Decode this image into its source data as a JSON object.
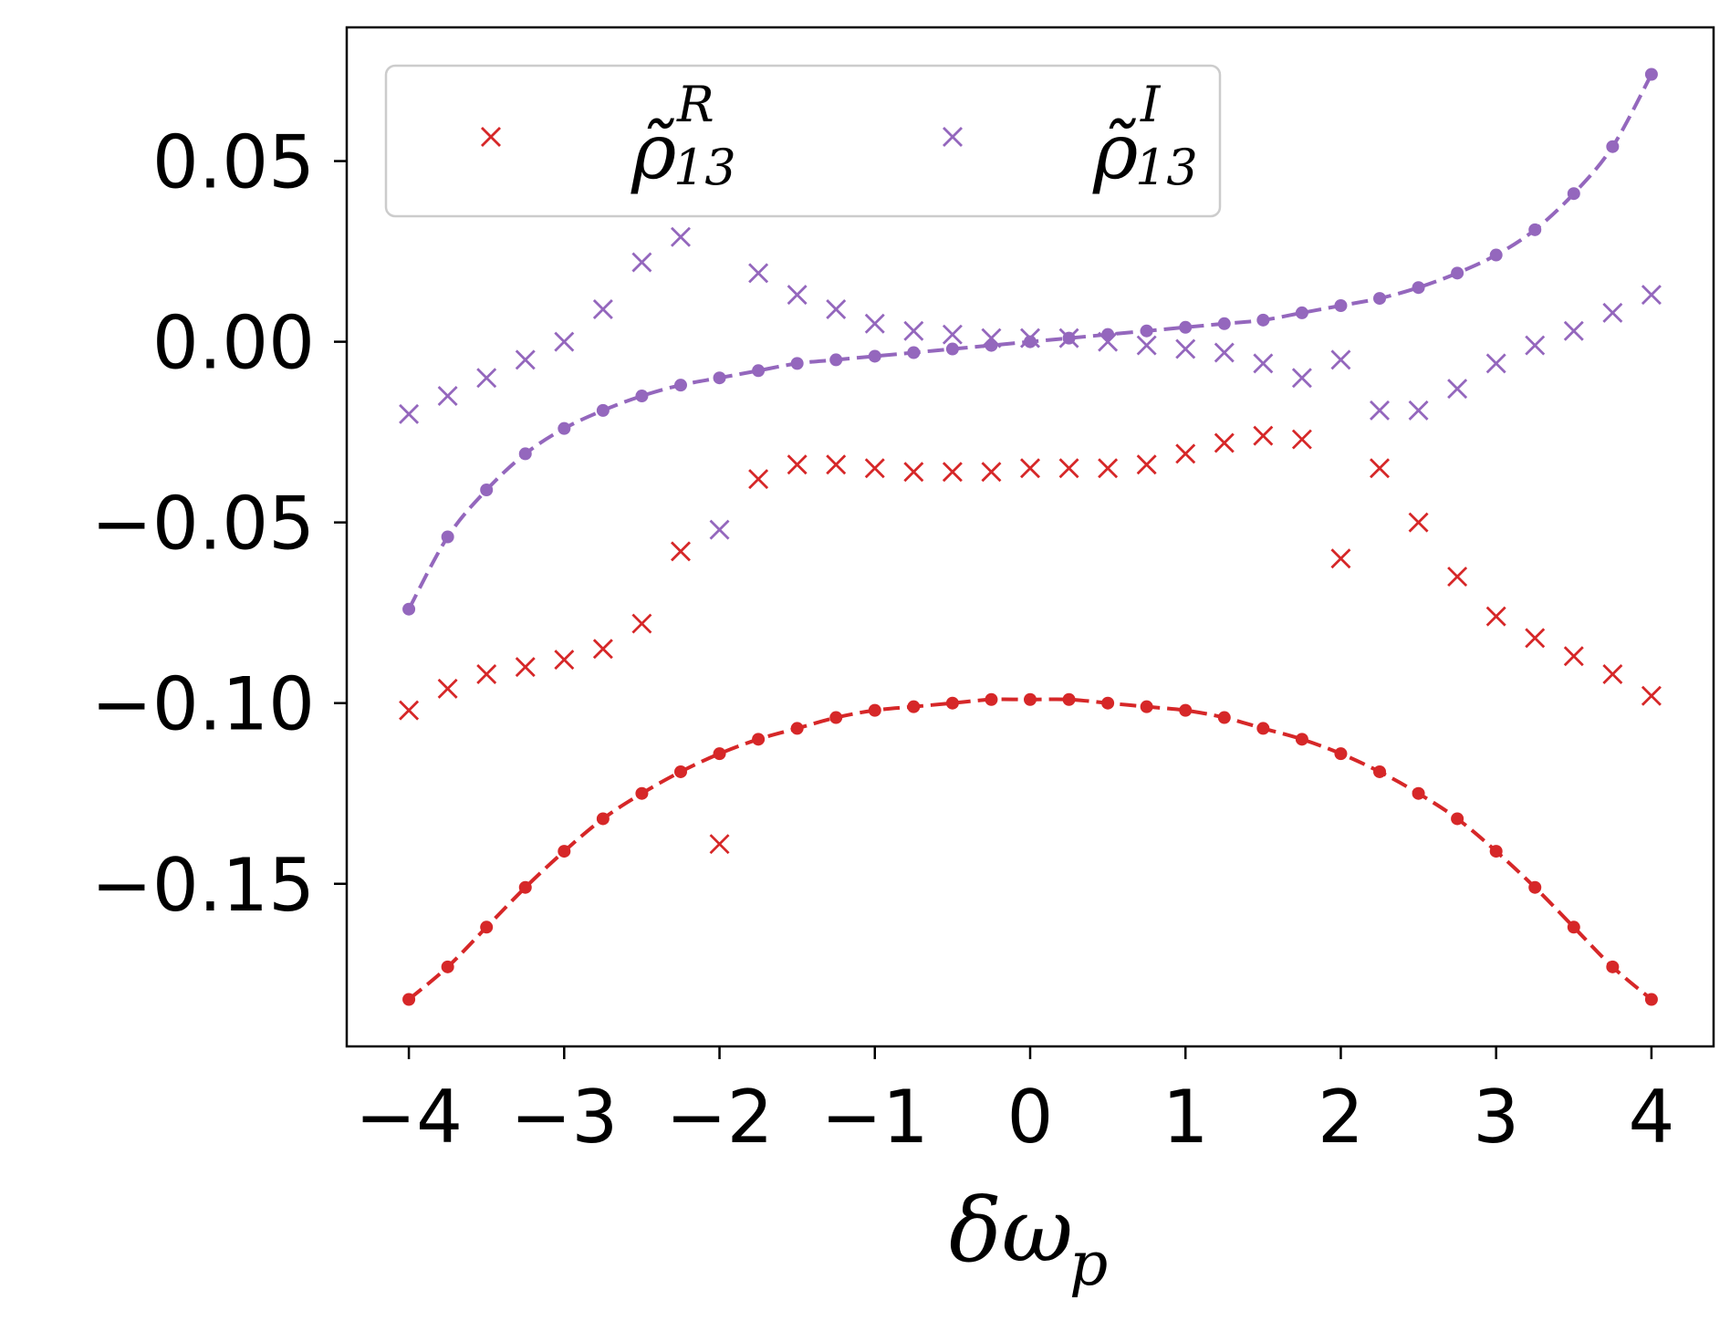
{
  "chart_data": {
    "type": "scatter",
    "title": "",
    "xlabel": "δω",
    "xlabel_subscript": "p",
    "ylabel": "",
    "xlim": [
      -4.4,
      4.4
    ],
    "ylim": [
      -0.195,
      0.087
    ],
    "x_ticks": [
      -4,
      -3,
      -2,
      -1,
      0,
      1,
      2,
      3,
      4
    ],
    "x_tick_labels": [
      "−4",
      "−3",
      "−2",
      "−1",
      "0",
      "1",
      "2",
      "3",
      "4"
    ],
    "y_ticks": [
      0.05,
      0.0,
      -0.05,
      -0.1,
      -0.15
    ],
    "y_tick_labels": [
      "0.05",
      "0.00",
      "−0.05",
      "−0.10",
      "−0.15"
    ],
    "grid": false,
    "legend": {
      "placement": "top-left",
      "columns": 2,
      "entries": [
        {
          "label_base": "ρ̃",
          "label_sub": "13",
          "label_sup": "R",
          "color": "#d62728",
          "marker": "x"
        },
        {
          "label_base": "ρ̃",
          "label_sub": "13",
          "label_sup": "I",
          "color": "#9467bd",
          "marker": "x"
        }
      ]
    },
    "x": [
      -4,
      -3.75,
      -3.5,
      -3.25,
      -3,
      -2.75,
      -2.5,
      -2.25,
      -2,
      -1.75,
      -1.5,
      -1.25,
      -1,
      -0.75,
      -0.5,
      -0.25,
      0,
      0.25,
      0.5,
      0.75,
      1,
      1.25,
      1.5,
      1.75,
      2,
      2.25,
      2.5,
      2.75,
      3,
      3.25,
      3.5,
      3.75,
      4
    ],
    "series": [
      {
        "name": "rho13_R_markers",
        "color": "#d62728",
        "style": "x-markers",
        "values": [
          -0.102,
          -0.096,
          -0.092,
          -0.09,
          -0.088,
          -0.085,
          -0.078,
          -0.058,
          -0.139,
          -0.038,
          -0.034,
          -0.034,
          -0.035,
          -0.036,
          -0.036,
          -0.036,
          -0.035,
          -0.035,
          -0.035,
          -0.034,
          -0.031,
          -0.028,
          -0.026,
          -0.027,
          -0.06,
          -0.035,
          -0.05,
          -0.065,
          -0.076,
          -0.082,
          -0.087,
          -0.092,
          -0.098
        ]
      },
      {
        "name": "rho13_I_markers",
        "color": "#9467bd",
        "style": "x-markers",
        "values": [
          -0.02,
          -0.015,
          -0.01,
          -0.005,
          0.0,
          0.009,
          0.022,
          0.029,
          -0.052,
          0.019,
          0.013,
          0.009,
          0.005,
          0.003,
          0.002,
          0.001,
          0.001,
          0.001,
          0.0,
          -0.001,
          -0.002,
          -0.003,
          -0.006,
          -0.01,
          -0.005,
          -0.019,
          -0.019,
          -0.013,
          -0.006,
          -0.001,
          0.003,
          0.008,
          0.013
        ]
      },
      {
        "name": "rho13_R_curve",
        "color": "#d62728",
        "style": "dashed-dots",
        "values": [
          -0.182,
          -0.173,
          -0.162,
          -0.151,
          -0.141,
          -0.132,
          -0.125,
          -0.119,
          -0.114,
          -0.11,
          -0.107,
          -0.104,
          -0.102,
          -0.101,
          -0.1,
          -0.099,
          -0.099,
          -0.099,
          -0.1,
          -0.101,
          -0.102,
          -0.104,
          -0.107,
          -0.11,
          -0.114,
          -0.119,
          -0.125,
          -0.132,
          -0.141,
          -0.151,
          -0.162,
          -0.173,
          -0.182
        ]
      },
      {
        "name": "rho13_I_curve",
        "color": "#9467bd",
        "style": "dashed-dots",
        "values": [
          -0.074,
          -0.054,
          -0.041,
          -0.031,
          -0.024,
          -0.019,
          -0.015,
          -0.012,
          -0.01,
          -0.008,
          -0.006,
          -0.005,
          -0.004,
          -0.003,
          -0.002,
          -0.001,
          0.0,
          0.001,
          0.002,
          0.003,
          0.004,
          0.005,
          0.006,
          0.008,
          0.01,
          0.012,
          0.015,
          0.019,
          0.024,
          0.031,
          0.041,
          0.054,
          0.074
        ]
      }
    ]
  }
}
